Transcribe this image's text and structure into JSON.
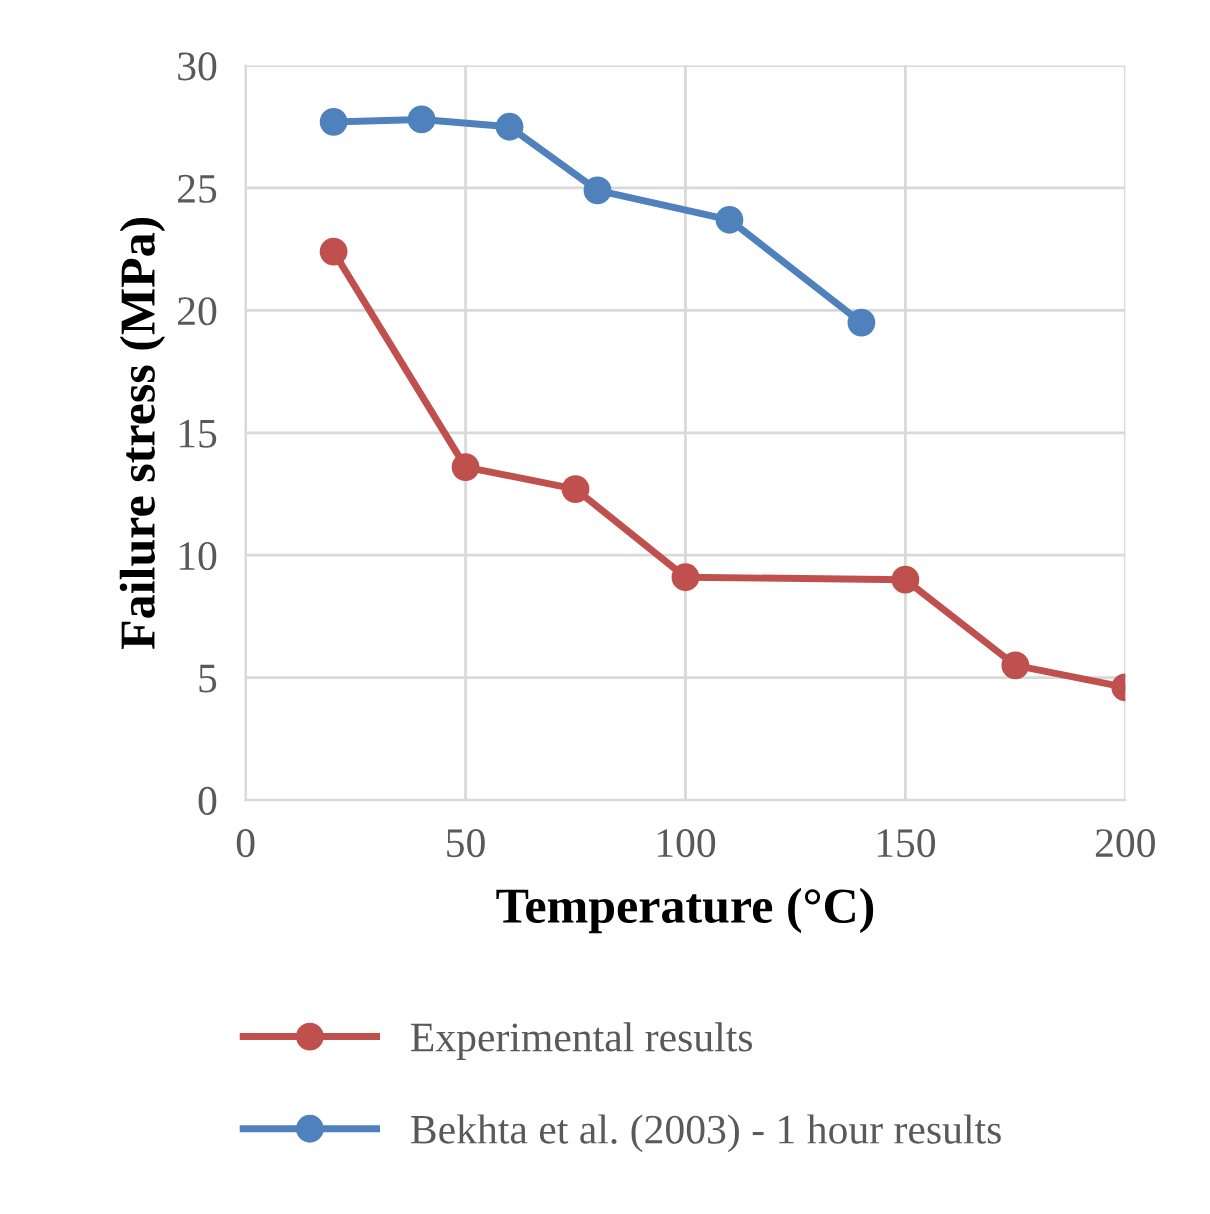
{
  "chart_data": {
    "type": "line",
    "xlabel": "Temperature (°C)",
    "ylabel": "Failure stress (MPa)",
    "xlim": [
      0,
      200
    ],
    "xticks": [
      0,
      50,
      100,
      150,
      200
    ],
    "ylim": [
      0,
      30
    ],
    "yticks": [
      0,
      5,
      10,
      15,
      20,
      25,
      30
    ],
    "grid": true,
    "legend": "bottom",
    "marker": "circle",
    "line_style": "solid",
    "series": [
      {
        "name": "Experimental results",
        "color": "#c0504d",
        "x": [
          20,
          50,
          75,
          100,
          150,
          175,
          200
        ],
        "values": [
          22.4,
          13.6,
          12.7,
          9.1,
          9.0,
          5.5,
          4.6
        ]
      },
      {
        "name": "Bekhta et al. (2003) - 1 hour results",
        "color": "#4f81bd",
        "x": [
          20,
          40,
          60,
          80,
          110,
          140
        ],
        "values": [
          27.7,
          27.8,
          27.5,
          24.9,
          23.7,
          19.5
        ]
      }
    ]
  }
}
